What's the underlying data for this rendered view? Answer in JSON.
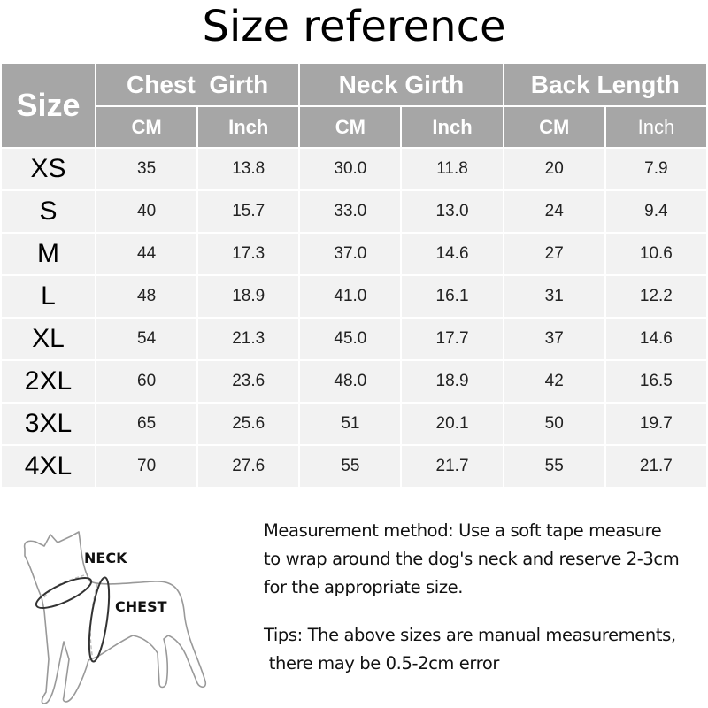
{
  "title": "Size reference",
  "table": {
    "size_header": "Size",
    "groups": [
      "Chest  Girth",
      "Neck Girth",
      "Back Length"
    ],
    "units": [
      "CM",
      "Inch",
      "CM",
      "Inch",
      "CM",
      "Inch"
    ],
    "rows": [
      [
        "XS",
        "35",
        "13.8",
        "30.0",
        "11.8",
        "20",
        "7.9"
      ],
      [
        "S",
        "40",
        "15.7",
        "33.0",
        "13.0",
        "24",
        "9.4"
      ],
      [
        "M",
        "44",
        "17.3",
        "37.0",
        "14.6",
        "27",
        "10.6"
      ],
      [
        "L",
        "48",
        "18.9",
        "41.0",
        "16.1",
        "31",
        "12.2"
      ],
      [
        "XL",
        "54",
        "21.3",
        "45.0",
        "17.7",
        "37",
        "14.6"
      ],
      [
        "2XL",
        "60",
        "23.6",
        "48.0",
        "18.9",
        "42",
        "16.5"
      ],
      [
        "3XL",
        "65",
        "25.6",
        "51",
        "20.1",
        "50",
        "19.7"
      ],
      [
        "4XL",
        "70",
        "27.6",
        "55",
        "21.7",
        "55",
        "21.7"
      ]
    ]
  },
  "diagram": {
    "neck_label": "NECK",
    "chest_label": "CHEST"
  },
  "notes": {
    "method": [
      "Measurement method: Use a soft tape measure",
      "to wrap around the dog's neck and reserve 2-3cm",
      "for the appropriate size."
    ],
    "tips": [
      "Tips: The above sizes are manual measurements,",
      " there may be 0.5-2cm error"
    ]
  },
  "colors": {
    "header": "#a6a6a6",
    "row": "#f2f2f2"
  }
}
